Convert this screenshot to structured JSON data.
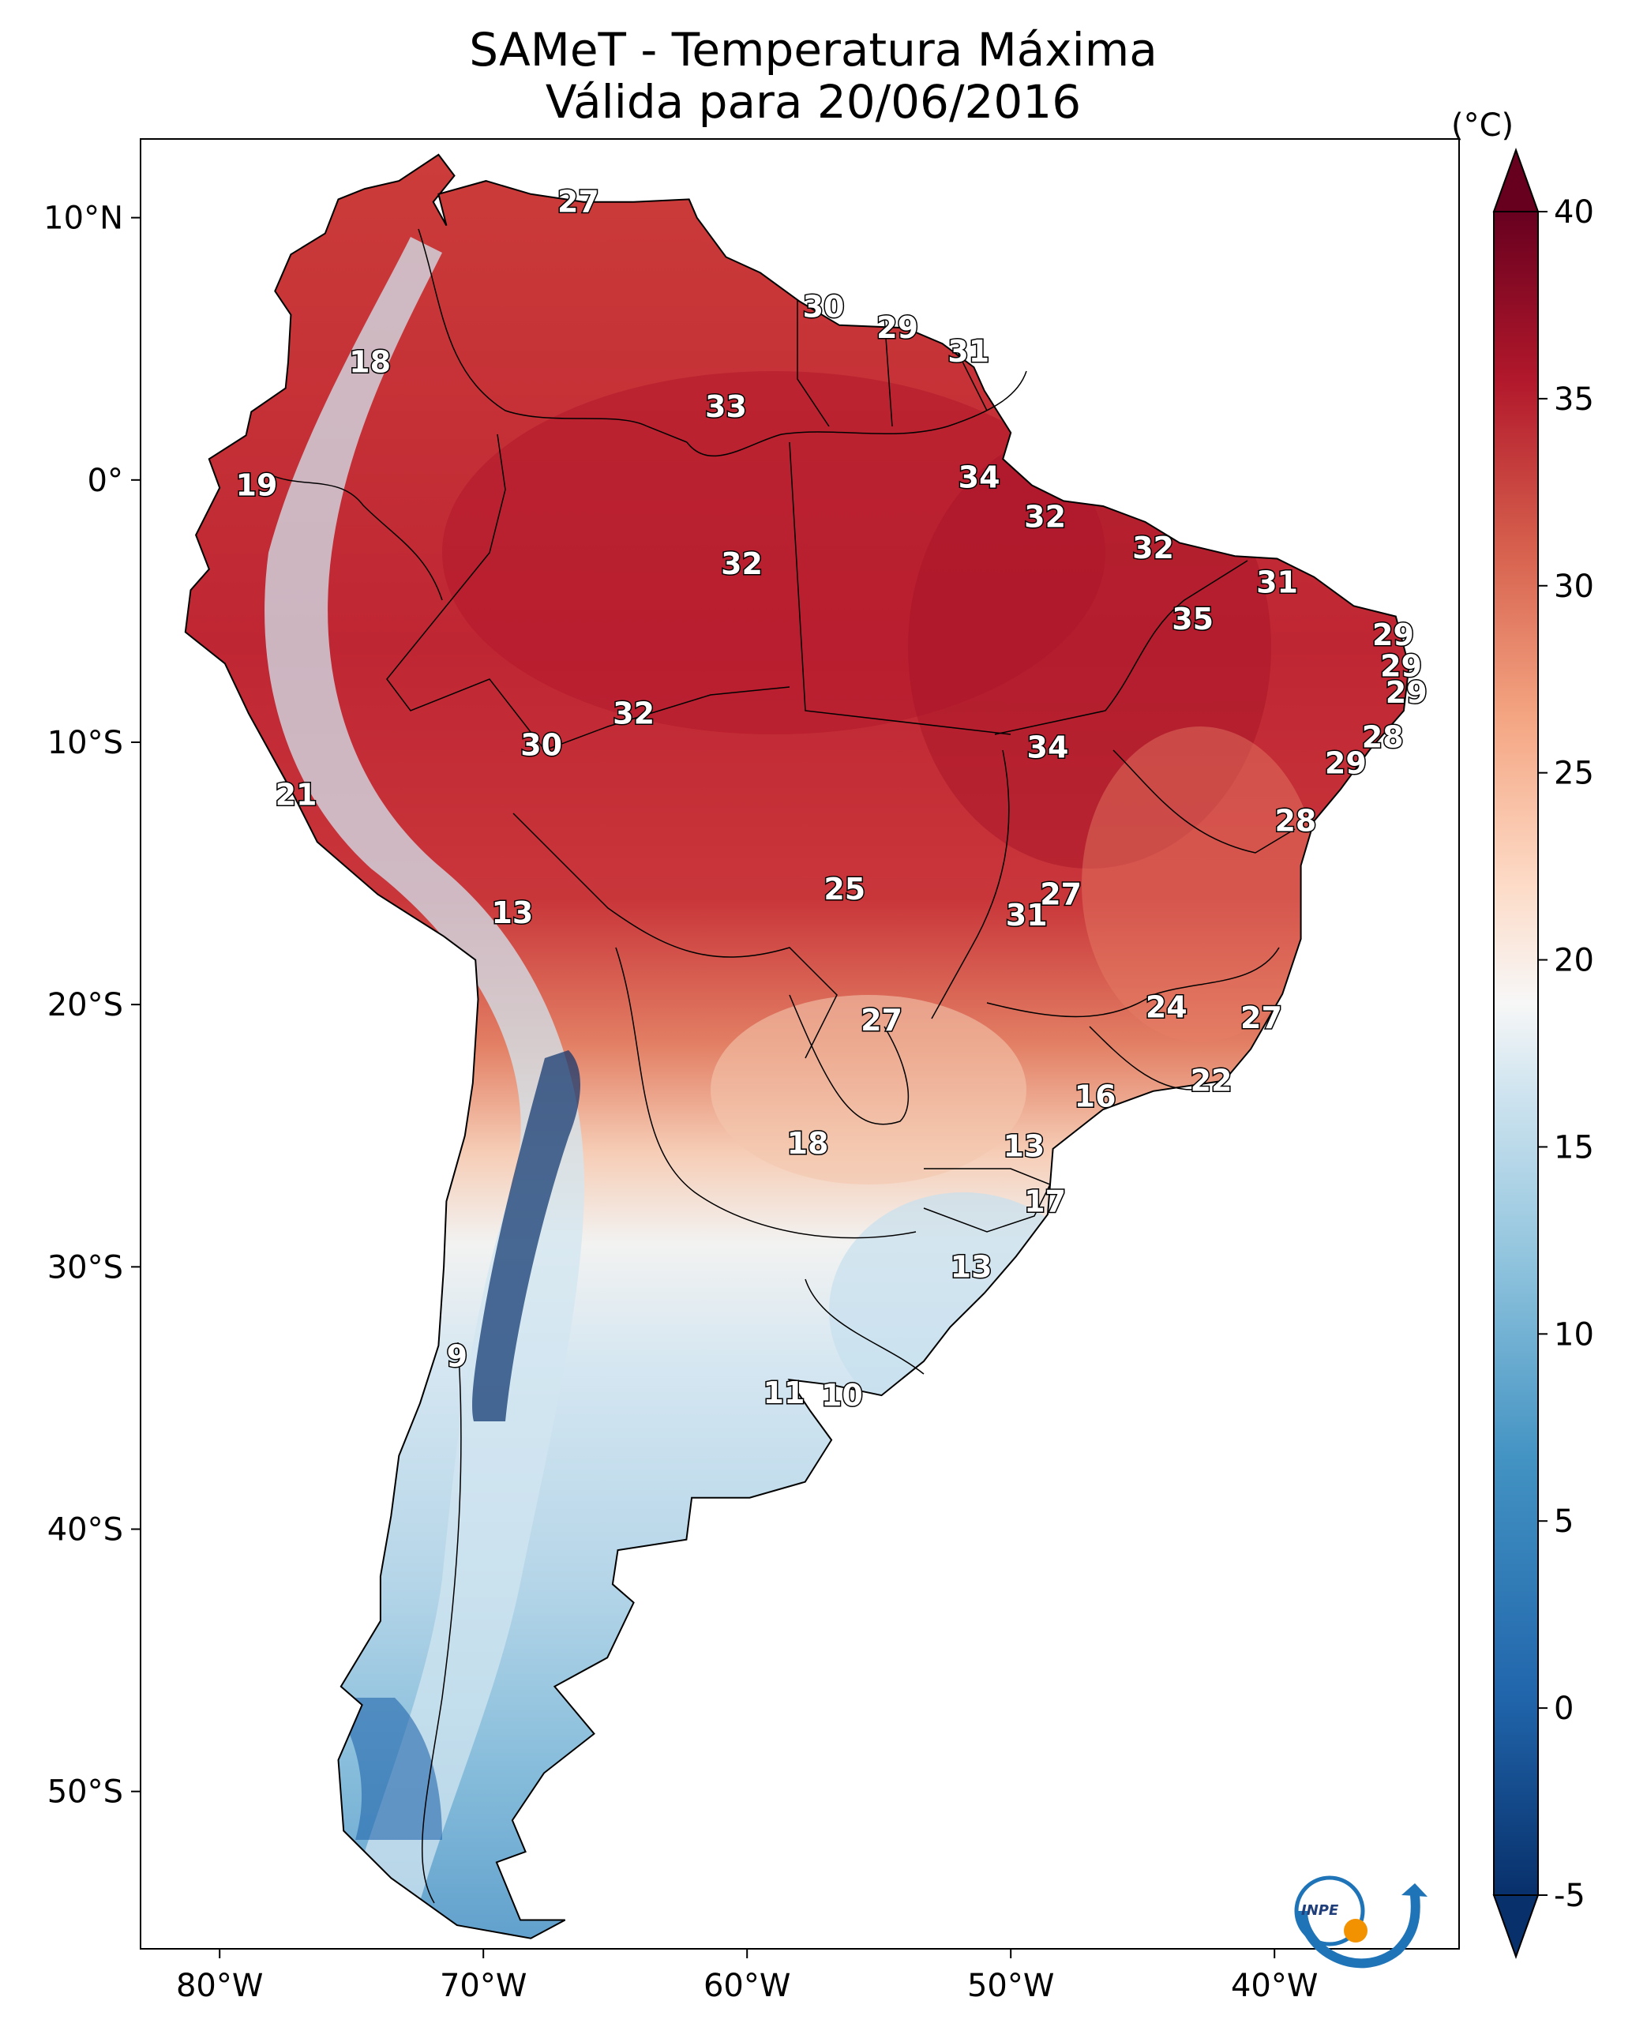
{
  "title": {
    "line1": "SAMeT - Temperatura Máxima",
    "line2": "Válida para 20/06/2016"
  },
  "axes": {
    "lon_ticks": [
      "80°W",
      "70°W",
      "60°W",
      "50°W",
      "40°W"
    ],
    "lat_ticks": [
      "10°N",
      "0°",
      "10°S",
      "20°S",
      "30°S",
      "40°S",
      "50°S"
    ],
    "lon_values": [
      -80,
      -70,
      -60,
      -50,
      -40
    ],
    "lat_values": [
      10,
      0,
      -10,
      -20,
      -30,
      -40,
      -50
    ],
    "lon_range": [
      -83.0,
      -33.0
    ],
    "lat_range": [
      -56.0,
      13.0
    ]
  },
  "colorbar": {
    "unit": "(°C)",
    "ticks": [
      "40",
      "35",
      "30",
      "25",
      "20",
      "15",
      "10",
      "5",
      "0",
      "-5"
    ],
    "tick_values": [
      40,
      35,
      30,
      25,
      20,
      15,
      10,
      5,
      0,
      -5
    ],
    "range": [
      -5,
      40
    ],
    "extend": "both",
    "colormap": "RdBu_r"
  },
  "logo": {
    "text": "INPE"
  },
  "labels": [
    {
      "text": "27",
      "lon": -66.4,
      "lat": 10.6
    },
    {
      "text": "30",
      "lon": -57.1,
      "lat": 6.6
    },
    {
      "text": "29",
      "lon": -54.3,
      "lat": 5.8
    },
    {
      "text": "31",
      "lon": -51.6,
      "lat": 4.9
    },
    {
      "text": "18",
      "lon": -74.3,
      "lat": 4.5
    },
    {
      "text": "33",
      "lon": -60.8,
      "lat": 2.8
    },
    {
      "text": "34",
      "lon": -51.2,
      "lat": 0.1
    },
    {
      "text": "19",
      "lon": -78.6,
      "lat": -0.2
    },
    {
      "text": "32",
      "lon": -48.7,
      "lat": -1.4
    },
    {
      "text": "32",
      "lon": -44.6,
      "lat": -2.6
    },
    {
      "text": "32",
      "lon": -60.2,
      "lat": -3.2
    },
    {
      "text": "31",
      "lon": -39.9,
      "lat": -3.9
    },
    {
      "text": "35",
      "lon": -43.1,
      "lat": -5.3
    },
    {
      "text": "29",
      "lon": -35.5,
      "lat": -5.9
    },
    {
      "text": "29",
      "lon": -35.2,
      "lat": -7.1
    },
    {
      "text": "29",
      "lon": -35.0,
      "lat": -8.1
    },
    {
      "text": "32",
      "lon": -64.3,
      "lat": -8.9
    },
    {
      "text": "28",
      "lon": -35.9,
      "lat": -9.8
    },
    {
      "text": "30",
      "lon": -67.8,
      "lat": -10.1
    },
    {
      "text": "34",
      "lon": -48.6,
      "lat": -10.2
    },
    {
      "text": "29",
      "lon": -37.3,
      "lat": -10.8
    },
    {
      "text": "21",
      "lon": -77.1,
      "lat": -12.0
    },
    {
      "text": "28",
      "lon": -39.2,
      "lat": -13.0
    },
    {
      "text": "25",
      "lon": -56.3,
      "lat": -15.6
    },
    {
      "text": "27",
      "lon": -48.1,
      "lat": -15.8
    },
    {
      "text": "31",
      "lon": -49.4,
      "lat": -16.6
    },
    {
      "text": "13",
      "lon": -68.9,
      "lat": -16.5
    },
    {
      "text": "24",
      "lon": -44.1,
      "lat": -20.1
    },
    {
      "text": "27",
      "lon": -40.5,
      "lat": -20.5
    },
    {
      "text": "27",
      "lon": -54.9,
      "lat": -20.6
    },
    {
      "text": "22",
      "lon": -42.4,
      "lat": -22.9
    },
    {
      "text": "16",
      "lon": -46.8,
      "lat": -23.5
    },
    {
      "text": "18",
      "lon": -57.7,
      "lat": -25.3
    },
    {
      "text": "13",
      "lon": -49.5,
      "lat": -25.4
    },
    {
      "text": "17",
      "lon": -48.7,
      "lat": -27.5
    },
    {
      "text": "13",
      "lon": -51.5,
      "lat": -30.0
    },
    {
      "text": "9",
      "lon": -71.0,
      "lat": -33.4
    },
    {
      "text": "11",
      "lon": -58.6,
      "lat": -34.8
    },
    {
      "text": "10",
      "lon": -56.4,
      "lat": -34.9
    }
  ]
}
